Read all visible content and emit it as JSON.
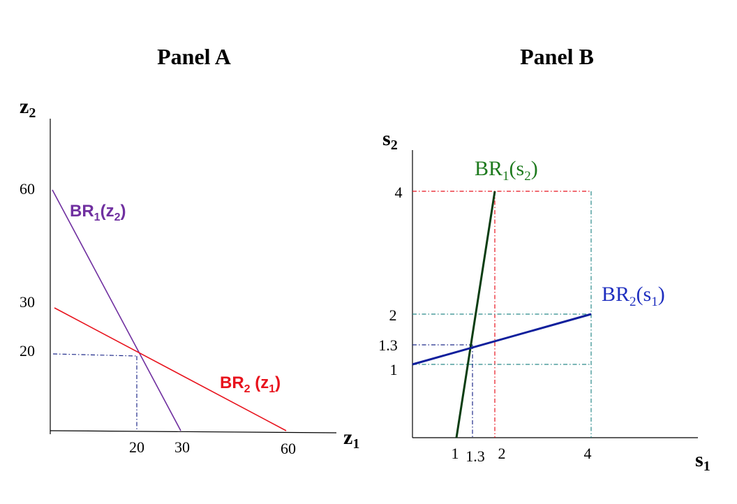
{
  "chart_data": [
    {
      "type": "line",
      "title": "Panel A",
      "xlabel": "z",
      "xlabel_sub": "1",
      "ylabel": "z",
      "ylabel_sub": "2",
      "xticks": [
        "20",
        "30",
        "60"
      ],
      "xtick_values": [
        20,
        30,
        60
      ],
      "yticks": [
        "60",
        "30",
        "20"
      ],
      "ytick_values": [
        60,
        30,
        20
      ],
      "series": [
        {
          "name": "BR1(z2)",
          "label_main": "BR",
          "label_sub": "1",
          "label_arg": "z",
          "label_arg_sub": "2",
          "color": "#7030a0",
          "x": [
            0,
            30
          ],
          "y": [
            60,
            0
          ]
        },
        {
          "name": "BR2(z1)",
          "label_main": "BR",
          "label_sub": "2",
          "label_arg": "z",
          "label_arg_sub": "1",
          "color": "#e8131d",
          "x": [
            0,
            60
          ],
          "y": [
            30,
            0
          ]
        }
      ],
      "intersection": {
        "x": 20,
        "y": 20
      },
      "guide_color": "#1f2a8a"
    },
    {
      "type": "line",
      "title": "Panel B",
      "xlabel": "s",
      "xlabel_sub": "1",
      "ylabel": "s",
      "ylabel_sub": "2",
      "xticks": [
        "1",
        "1.3",
        "2",
        "4"
      ],
      "xtick_values": [
        1,
        1.3,
        2,
        4
      ],
      "yticks": [
        "4",
        "2",
        "1.3",
        "1"
      ],
      "ytick_values": [
        4,
        2,
        1.3,
        1
      ],
      "series": [
        {
          "name": "BR1(s2)",
          "label_main": "BR",
          "label_sub": "1",
          "label_arg": "s",
          "label_arg_sub": "2",
          "color": "#0a3d12",
          "label_color": "#1e7a1e",
          "x": [
            1,
            2
          ],
          "y": [
            0,
            4
          ]
        },
        {
          "name": "BR2(s1)",
          "label_main": "BR",
          "label_sub": "2",
          "label_arg": "s",
          "label_arg_sub": "1",
          "color": "#0f1f9c",
          "label_color": "#1f2fbf",
          "x": [
            0,
            4
          ],
          "y": [
            1,
            2
          ]
        }
      ],
      "intersection": {
        "x": 1.3,
        "y": 1.3
      },
      "guide_colors": {
        "red": "#e8131d",
        "teal": "#2a8a8a",
        "navy": "#1f2a8a"
      }
    }
  ]
}
